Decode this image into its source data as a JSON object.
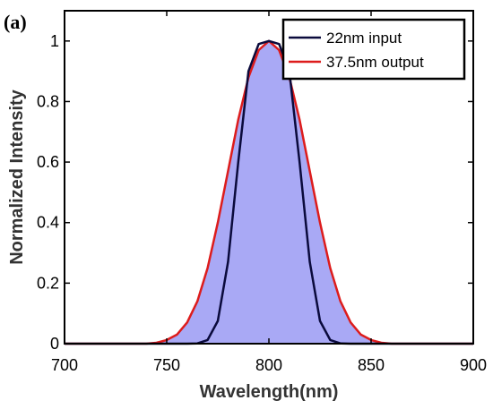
{
  "panel_label": "(a)",
  "chart_data": {
    "type": "area",
    "xlabel": "Wavelength(nm)",
    "ylabel": "Normalized Intensity",
    "xlim": [
      700,
      900
    ],
    "ylim": [
      0,
      1.1
    ],
    "xticks": [
      700,
      750,
      800,
      850,
      900
    ],
    "yticks": [
      0,
      0.2,
      0.4,
      0.6,
      0.8,
      1
    ],
    "xtick_labels": [
      "700",
      "750",
      "800",
      "850",
      "900"
    ],
    "ytick_labels": [
      "0",
      "0.2",
      "0.4",
      "0.6",
      "0.8",
      "1"
    ],
    "grid": false,
    "legend_position": "top-right",
    "x": [
      700,
      740,
      745,
      750,
      755,
      760,
      765,
      770,
      775,
      780,
      785,
      790,
      795,
      800,
      805,
      810,
      815,
      820,
      825,
      830,
      835,
      840,
      845,
      850,
      855,
      860,
      900
    ],
    "series": [
      {
        "name": "22nm input",
        "color": "#0a0a3c",
        "fill": false,
        "y": [
          0,
          0,
          0,
          0,
          0,
          0,
          0.001,
          0.012,
          0.075,
          0.27,
          0.6,
          0.9,
          0.99,
          1.0,
          0.99,
          0.9,
          0.6,
          0.27,
          0.075,
          0.012,
          0.001,
          0,
          0,
          0,
          0,
          0,
          0
        ]
      },
      {
        "name": "37.5nm output",
        "color": "#dd1c1c",
        "fill": true,
        "fill_color": "#a9a9f5",
        "y": [
          0,
          0,
          0.003,
          0.012,
          0.03,
          0.07,
          0.14,
          0.25,
          0.4,
          0.57,
          0.74,
          0.88,
          0.97,
          1.0,
          0.97,
          0.88,
          0.74,
          0.57,
          0.4,
          0.25,
          0.14,
          0.07,
          0.03,
          0.012,
          0.003,
          0,
          0
        ]
      }
    ]
  }
}
